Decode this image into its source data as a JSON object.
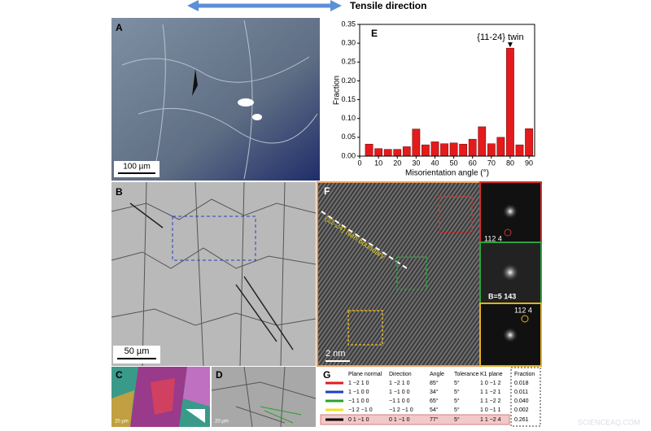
{
  "header": {
    "tensile_direction": "Tensile direction"
  },
  "panels": {
    "a": {
      "label": "A",
      "scale_bar": "100 µm"
    },
    "b": {
      "label": "B",
      "scale_bar": "50 µm"
    },
    "f": {
      "label": "F",
      "annotation": "{11-24} twin boundary",
      "scale_bar": "2 nm",
      "inset_top_label": "112 4",
      "inset_middle_label": "B=5 143",
      "inset_bottom_label": "112 4"
    },
    "c": {
      "label": "C",
      "scale_bar": "20 µm"
    },
    "d": {
      "label": "D",
      "scale_bar": "20 µm"
    }
  },
  "chart_data": {
    "type": "bar",
    "panel_label": "E",
    "annotation": "{11-24} twin",
    "x_label": "Misorientation angle (°)",
    "y_label": "Fraction",
    "x": [
      5,
      10,
      15,
      20,
      25,
      30,
      35,
      40,
      45,
      50,
      55,
      60,
      65,
      70,
      75,
      80,
      85,
      90
    ],
    "values": [
      0.032,
      0.02,
      0.018,
      0.018,
      0.025,
      0.072,
      0.03,
      0.038,
      0.033,
      0.035,
      0.032,
      0.045,
      0.078,
      0.033,
      0.05,
      0.287,
      0.03,
      0.073
    ],
    "color": "#e41a1c",
    "xlim": [
      0,
      93
    ],
    "ylim": [
      0,
      0.35
    ],
    "xticks": [
      0,
      10,
      20,
      30,
      40,
      50,
      60,
      70,
      80,
      90
    ],
    "yticks": [
      {
        "value": 0,
        "label": "0.00"
      },
      {
        "value": 0.05,
        "label": "0.05"
      },
      {
        "value": 0.1,
        "label": "0.10"
      },
      {
        "value": 0.15,
        "label": "0.15"
      },
      {
        "value": 0.2,
        "label": "0.20"
      },
      {
        "value": 0.25,
        "label": "0.25"
      },
      {
        "value": 0.3,
        "label": "0.30"
      },
      {
        "value": 0.35,
        "label": "0.35"
      }
    ]
  },
  "table_g": {
    "label": "G",
    "header": [
      "Plane normal",
      "Direction",
      "Angle",
      "Tolerance",
      "K1 plane",
      "Fraction"
    ],
    "rows": [
      {
        "color": "#e41a1c",
        "cells": [
          "1 −2 1 0",
          "1 −2 1 0",
          "85°",
          "5°",
          "1 0 −1 2",
          "0.018"
        ]
      },
      {
        "color": "#1f3fbf",
        "cells": [
          "1 −1 0 0",
          "1 −1 0 0",
          "34°",
          "5°",
          "1 1 −2 1",
          "0.011"
        ]
      },
      {
        "color": "#2ca02c",
        "cells": [
          "−1 1 0 0",
          "−1 1 0 0",
          "65°",
          "5°",
          "1 1 −2 2",
          "0.040"
        ]
      },
      {
        "color": "#f0e020",
        "cells": [
          "−1 2 −1 0",
          "−1 2 −1 0",
          "54°",
          "5°",
          "1 0 −1 1",
          "0.002"
        ]
      },
      {
        "color": "#000000",
        "cells": [
          "0 1 −1 0",
          "0 1 −1 0",
          "77°",
          "5°",
          "1 1 −2 4",
          "0.261"
        ]
      }
    ]
  },
  "watermark": "SCIENCEAQ.COM"
}
